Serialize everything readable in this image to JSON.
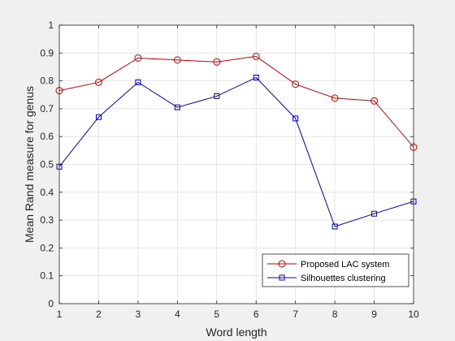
{
  "chart_data": {
    "type": "line",
    "title": "",
    "xlabel": "Word length",
    "ylabel": "Mean Rand measure for genus",
    "xlim": [
      1,
      10
    ],
    "ylim": [
      0,
      1
    ],
    "x": [
      1,
      2,
      3,
      4,
      5,
      6,
      7,
      8,
      9,
      10
    ],
    "xticks": [
      "1",
      "2",
      "3",
      "4",
      "5",
      "6",
      "7",
      "8",
      "9",
      "10"
    ],
    "yticks": [
      "0",
      "0.1",
      "0.2",
      "0.3",
      "0.4",
      "0.5",
      "0.6",
      "0.7",
      "0.8",
      "0.9",
      "1"
    ],
    "grid": true,
    "legend_position": "bottom-right",
    "series": [
      {
        "name": "Proposed LAC system",
        "color": "#cc0000",
        "marker": "circle",
        "values": [
          0.765,
          0.795,
          0.882,
          0.875,
          0.868,
          0.888,
          0.788,
          0.738,
          0.728,
          0.562
        ]
      },
      {
        "name": "Silhouettes clustering",
        "color": "#0000cc",
        "marker": "square",
        "values": [
          0.492,
          0.67,
          0.795,
          0.705,
          0.745,
          0.812,
          0.665,
          0.277,
          0.323,
          0.367
        ]
      }
    ]
  }
}
